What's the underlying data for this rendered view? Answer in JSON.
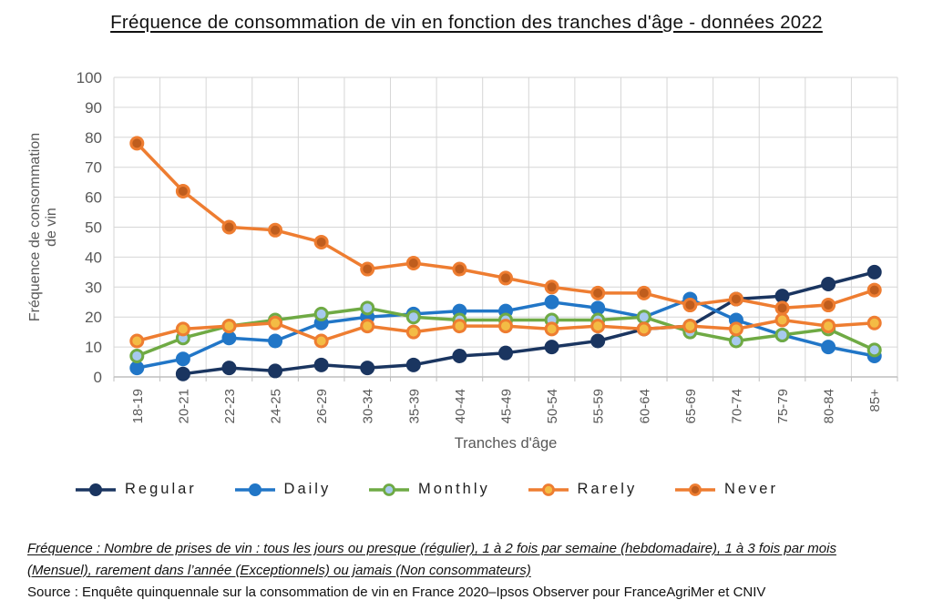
{
  "title": "Fréquence de consommation de vin en fonction des tranches d'âge - données 2022",
  "chart_data": {
    "type": "line",
    "title": "Fréquence de consommation de vin en fonction des tranches d'âge - données 2022",
    "categories": [
      "18-19",
      "20-21",
      "22-23",
      "24-25",
      "26-29",
      "30-34",
      "35-39",
      "40-44",
      "45-49",
      "50-54",
      "55-59",
      "60-64",
      "65-69",
      "70-74",
      "75-79",
      "80-84",
      "85+"
    ],
    "series": [
      {
        "name": "Regular",
        "line_color": "#1a3560",
        "marker_fill": "#1a3560",
        "marker_stroke": "#1a3560",
        "marker_style": "solid",
        "values": [
          null,
          1,
          3,
          2,
          4,
          3,
          4,
          7,
          8,
          10,
          12,
          16,
          17,
          26,
          27,
          31,
          35
        ]
      },
      {
        "name": "Daily",
        "line_color": "#2176c7",
        "marker_fill": "#2176c7",
        "marker_stroke": "#2176c7",
        "marker_style": "solid",
        "values": [
          3,
          6,
          13,
          12,
          18,
          20,
          21,
          22,
          22,
          25,
          23,
          20,
          26,
          19,
          14,
          10,
          7
        ]
      },
      {
        "name": "Monthly",
        "line_color": "#6faa44",
        "marker_fill": "#a7c9ee",
        "marker_stroke": "#6faa44",
        "marker_style": "ring",
        "values": [
          7,
          13,
          17,
          19,
          21,
          23,
          20,
          19,
          19,
          19,
          19,
          20,
          15,
          12,
          14,
          16,
          9
        ]
      },
      {
        "name": "Rarely",
        "line_color": "#ee7d31",
        "marker_fill": "#f3bc45",
        "marker_stroke": "#ee7d31",
        "marker_style": "ring",
        "values": [
          12,
          16,
          17,
          18,
          12,
          17,
          15,
          17,
          17,
          16,
          17,
          16,
          17,
          16,
          19,
          17,
          18
        ]
      },
      {
        "name": "Never",
        "line_color": "#ee7d31",
        "marker_fill": "#bf5d1d",
        "marker_stroke": "#ee7d31",
        "marker_style": "ring",
        "values": [
          78,
          62,
          50,
          49,
          45,
          36,
          38,
          36,
          33,
          30,
          28,
          28,
          24,
          26,
          23,
          24,
          29
        ]
      }
    ],
    "xlabel": "Tranches d'âge",
    "ylabel_lines": [
      "Fréquence de consommation",
      "de vin"
    ],
    "ylim": [
      0,
      100
    ],
    "ytick_step": 10,
    "yticks": [
      "0",
      "10",
      "20",
      "30",
      "40",
      "50",
      "60",
      "70",
      "80",
      "90",
      "100"
    ],
    "grid": true,
    "legend_position": "bottom",
    "colors": {
      "grid": "#d6d6d6",
      "axis": "#bfbfbf",
      "tick_text": "#595959"
    }
  },
  "footer": {
    "note_line1": "Fréquence : Nombre de prises de vin : tous les jours ou presque (régulier), 1 à 2 fois par semaine (hebdomadaire), 1 à 3 fois par mois",
    "note_line2": "(Mensuel), rarement dans l’année (Exceptionnels) ou jamais (Non consommateurs)",
    "source": "Source : Enquête quinquennale sur la consommation de vin en France 2020–Ipsos Observer pour FranceAgriMer et CNIV"
  }
}
